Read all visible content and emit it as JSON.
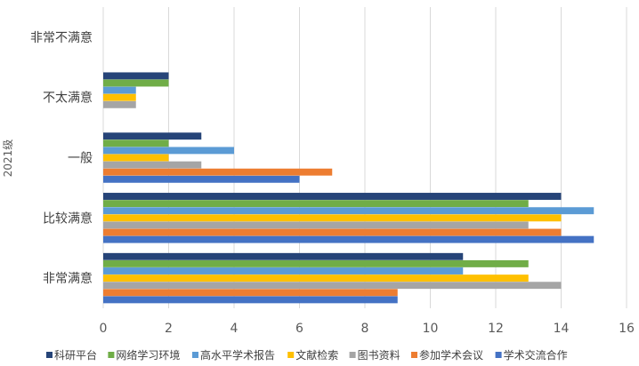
{
  "chart_data": {
    "type": "bar",
    "orientation": "horizontal",
    "ylabel": "2021级",
    "xlim": [
      0,
      16
    ],
    "xticks": [
      "0",
      "2",
      "4",
      "6",
      "8",
      "10",
      "12",
      "14",
      "16"
    ],
    "grid": true,
    "legend_position": "bottom",
    "categories": [
      "非常满意",
      "比较满意",
      "一般",
      "不太满意",
      "非常不满意"
    ],
    "series": [
      {
        "name": "科研平台",
        "color": "#264478",
        "values": [
          11,
          14,
          3,
          2,
          0
        ]
      },
      {
        "name": "网络学习环境",
        "color": "#70AD47",
        "values": [
          13,
          13,
          2,
          2,
          0
        ]
      },
      {
        "name": "高水平学术报告",
        "color": "#5B9BD5",
        "values": [
          11,
          15,
          4,
          1,
          0
        ]
      },
      {
        "name": "文献检索",
        "color": "#FFC000",
        "values": [
          13,
          14,
          2,
          1,
          0
        ]
      },
      {
        "name": "图书资料",
        "color": "#A5A5A5",
        "values": [
          14,
          13,
          3,
          1,
          0
        ]
      },
      {
        "name": "参加学术会议",
        "color": "#ED7D31",
        "values": [
          9,
          14,
          7,
          0,
          0
        ]
      },
      {
        "name": "学术交流合作",
        "color": "#4472C4",
        "values": [
          9,
          15,
          6,
          0,
          0
        ]
      }
    ]
  }
}
